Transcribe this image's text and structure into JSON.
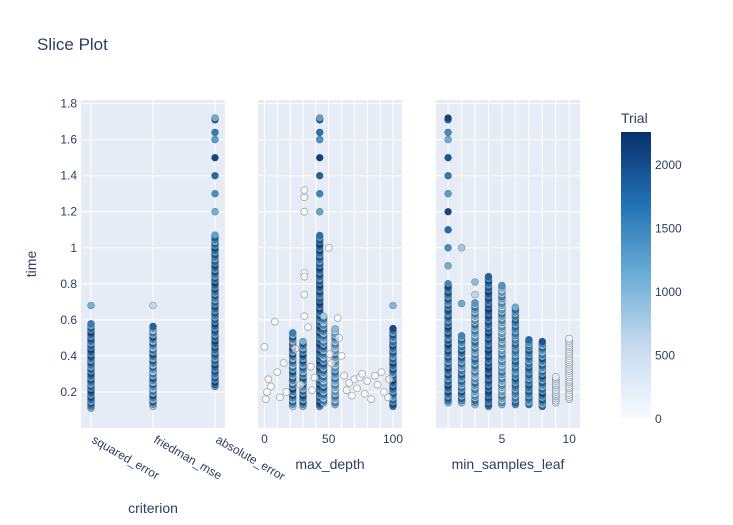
{
  "chart_data": {
    "type": "scatter",
    "title": "Slice Plot",
    "ylabel": "time",
    "ylim": [
      0.0,
      1.82
    ],
    "y_ticks": [
      0.2,
      0.4,
      0.6,
      0.8,
      1,
      1.2,
      1.4,
      1.6,
      1.8
    ],
    "y_tick_labels": [
      "0.2",
      "0.4",
      "0.6",
      "0.8",
      "1",
      "1.2",
      "1.4",
      "1.6",
      "1.8"
    ],
    "grid": true,
    "colorbar": {
      "title": "Trial",
      "range": [
        0,
        2250
      ],
      "ticks": [
        0,
        500,
        1000,
        1500,
        2000
      ],
      "tick_labels": [
        "0",
        "500",
        "1000",
        "1500",
        "2000"
      ],
      "colorscale": [
        "#f7fbff",
        "#c6dbef",
        "#6baed6",
        "#2171b5",
        "#08306b"
      ]
    },
    "panels": [
      {
        "xlabel": "criterion",
        "x_type": "category",
        "categories": [
          "squared_error",
          "friedman_mse",
          "absolute_error"
        ],
        "columns": [
          {
            "x": "squared_error",
            "y_min": 0.11,
            "y_max": 0.58,
            "y_outliers": [
              0.68
            ],
            "trial_range": [
              1100,
              2200
            ]
          },
          {
            "x": "friedman_mse",
            "y_min": 0.12,
            "y_max": 0.57,
            "y_outliers": [
              0.68
            ],
            "trial_range": [
              600,
              2100
            ]
          },
          {
            "x": "absolute_error",
            "y_min": 0.23,
            "y_max": 1.07,
            "y_outliers": [
              1.2,
              1.3,
              1.4,
              1.5,
              1.6,
              1.64,
              1.71,
              1.72
            ],
            "trial_range": [
              1100,
              2200
            ]
          }
        ]
      },
      {
        "xlabel": "max_depth",
        "x_type": "linear",
        "xlim": [
          -5,
          107
        ],
        "x_ticks": [
          0,
          50,
          100
        ],
        "x_tick_labels": [
          "0",
          "50",
          "100"
        ],
        "columns": [
          {
            "x": 22,
            "y_min": 0.12,
            "y_max": 0.53,
            "y_outliers": [],
            "trial_range": [
              700,
              2200
            ]
          },
          {
            "x": 30,
            "y_min": 0.12,
            "y_max": 0.49,
            "y_outliers": [],
            "trial_range": [
              800,
              2200
            ]
          },
          {
            "x": 43,
            "y_min": 0.12,
            "y_max": 1.07,
            "y_outliers": [
              1.2,
              1.3,
              1.4,
              1.5,
              1.6,
              1.64,
              1.71,
              1.72
            ],
            "trial_range": [
              1200,
              2250
            ]
          },
          {
            "x": 46,
            "y_min": 0.14,
            "y_max": 0.62,
            "y_outliers": [],
            "trial_range": [
              600,
              2000
            ]
          },
          {
            "x": 55,
            "y_min": 0.13,
            "y_max": 0.55,
            "y_outliers": [],
            "trial_range": [
              500,
              1700
            ]
          },
          {
            "x": 100,
            "y_min": 0.12,
            "y_max": 0.56,
            "y_outliers": [
              0.68
            ],
            "trial_range": [
              1000,
              2200
            ]
          }
        ],
        "sparse_points": [
          {
            "x": 0,
            "y": 0.45
          },
          {
            "x": 1,
            "y": 0.16
          },
          {
            "x": 2,
            "y": 0.2
          },
          {
            "x": 3,
            "y": 0.27
          },
          {
            "x": 5,
            "y": 0.23
          },
          {
            "x": 8,
            "y": 0.59
          },
          {
            "x": 10,
            "y": 0.31
          },
          {
            "x": 12,
            "y": 0.17
          },
          {
            "x": 15,
            "y": 0.36
          },
          {
            "x": 17,
            "y": 0.2
          },
          {
            "x": 24,
            "y": 0.44
          },
          {
            "x": 28,
            "y": 0.24
          },
          {
            "x": 31,
            "y": 1.32
          },
          {
            "x": 31,
            "y": 1.28
          },
          {
            "x": 31,
            "y": 1.2
          },
          {
            "x": 31,
            "y": 0.86
          },
          {
            "x": 31,
            "y": 0.84
          },
          {
            "x": 31,
            "y": 0.74
          },
          {
            "x": 31,
            "y": 0.62
          },
          {
            "x": 34,
            "y": 0.56
          },
          {
            "x": 36,
            "y": 0.34
          },
          {
            "x": 37,
            "y": 0.21
          },
          {
            "x": 39,
            "y": 0.28
          },
          {
            "x": 50,
            "y": 1.0
          },
          {
            "x": 51,
            "y": 0.41
          },
          {
            "x": 52,
            "y": 0.36
          },
          {
            "x": 57,
            "y": 0.61
          },
          {
            "x": 58,
            "y": 0.5
          },
          {
            "x": 60,
            "y": 0.4
          },
          {
            "x": 62,
            "y": 0.29
          },
          {
            "x": 64,
            "y": 0.21
          },
          {
            "x": 66,
            "y": 0.25
          },
          {
            "x": 68,
            "y": 0.18
          },
          {
            "x": 70,
            "y": 0.27
          },
          {
            "x": 72,
            "y": 0.22
          },
          {
            "x": 74,
            "y": 0.28
          },
          {
            "x": 76,
            "y": 0.3
          },
          {
            "x": 78,
            "y": 0.19
          },
          {
            "x": 80,
            "y": 0.26
          },
          {
            "x": 83,
            "y": 0.16
          },
          {
            "x": 86,
            "y": 0.29
          },
          {
            "x": 88,
            "y": 0.24
          },
          {
            "x": 91,
            "y": 0.31
          },
          {
            "x": 93,
            "y": 0.2
          },
          {
            "x": 96,
            "y": 0.17
          },
          {
            "x": 97,
            "y": 0.27
          }
        ]
      },
      {
        "xlabel": "min_samples_leaf",
        "x_type": "linear",
        "xlim": [
          0.1,
          10.8
        ],
        "x_ticks": [
          5,
          10
        ],
        "x_tick_labels": [
          "5",
          "10"
        ],
        "columns": [
          {
            "x": 1,
            "y_min": 0.14,
            "y_max": 0.8,
            "y_outliers": [
              0.9,
              1.0,
              1.1,
              1.2,
              1.3,
              1.4,
              1.5,
              1.6,
              1.64,
              1.71,
              1.72
            ],
            "trial_range": [
              1100,
              2200
            ]
          },
          {
            "x": 2,
            "y_min": 0.14,
            "y_max": 0.52,
            "y_outliers": [
              1.0,
              0.69
            ],
            "trial_range": [
              800,
              2000
            ]
          },
          {
            "x": 3,
            "y_min": 0.13,
            "y_max": 0.7,
            "y_outliers": [
              0.74,
              0.81
            ],
            "trial_range": [
              600,
              1800
            ]
          },
          {
            "x": 4,
            "y_min": 0.12,
            "y_max": 0.84,
            "y_outliers": [],
            "trial_range": [
              1300,
              2250
            ]
          },
          {
            "x": 5,
            "y_min": 0.13,
            "y_max": 0.8,
            "y_outliers": [],
            "trial_range": [
              500,
              1600
            ]
          },
          {
            "x": 6,
            "y_min": 0.13,
            "y_max": 0.67,
            "y_outliers": [],
            "trial_range": [
              900,
              1900
            ]
          },
          {
            "x": 7,
            "y_min": 0.13,
            "y_max": 0.5,
            "y_outliers": [],
            "trial_range": [
              1000,
              2000
            ]
          },
          {
            "x": 8,
            "y_min": 0.12,
            "y_max": 0.48,
            "y_outliers": [],
            "trial_range": [
              800,
              2100
            ]
          },
          {
            "x": 9,
            "y_min": 0.14,
            "y_max": 0.29,
            "y_outliers": [],
            "trial_range": [
              100,
              600
            ]
          },
          {
            "x": 10,
            "y_min": 0.16,
            "y_max": 0.5,
            "y_outliers": [],
            "trial_range": [
              0,
              400
            ]
          }
        ]
      }
    ]
  }
}
